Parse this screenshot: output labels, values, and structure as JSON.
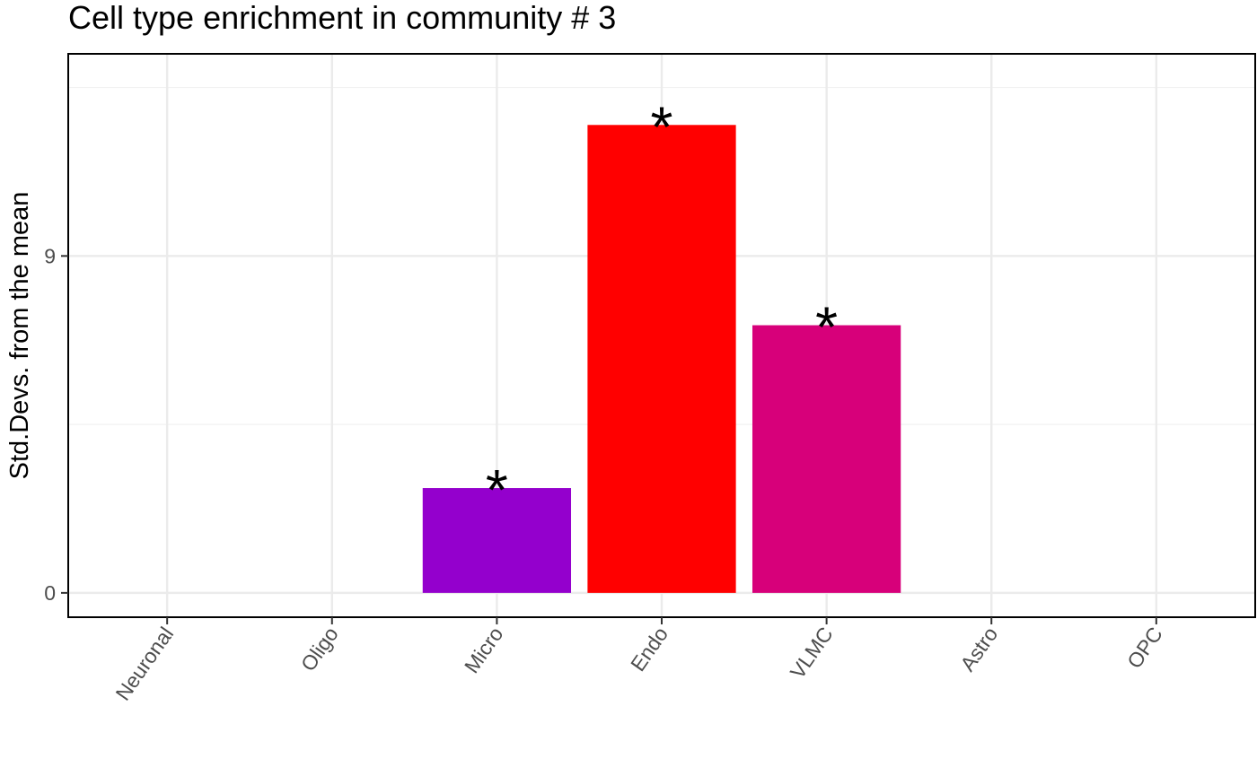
{
  "chart_data": {
    "type": "bar",
    "title": "Cell type enrichment in community # 3",
    "xlabel": "",
    "ylabel": "Std.Devs. from the mean",
    "categories": [
      "Neuronal",
      "Oligo",
      "Micro",
      "Endo",
      "VLMC",
      "Astro",
      "OPC"
    ],
    "values": [
      0,
      0,
      2.8,
      12.5,
      7.15,
      0,
      0
    ],
    "colors": [
      "#000000",
      "#000000",
      "#9400CD",
      "#FF0000",
      "#D7007A",
      "#000000",
      "#000000"
    ],
    "significance": [
      "",
      "",
      "*",
      "*",
      "*",
      "",
      ""
    ],
    "ylim": [
      -0.65,
      14.4
    ],
    "yticks": [
      0,
      9
    ],
    "ytick_labels": [
      "0",
      "9"
    ],
    "grid": true,
    "theme": "bw"
  }
}
